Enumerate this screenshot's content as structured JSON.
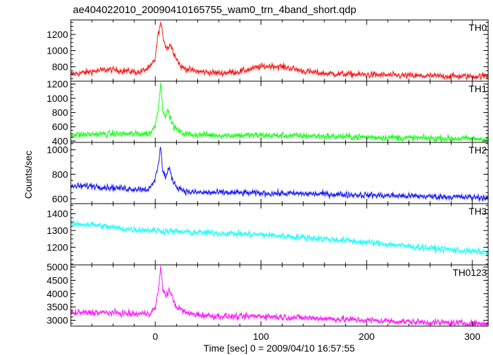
{
  "title": "ae404022010_20090410165755_wam0_trn_4band_short.qdp",
  "chart_data": {
    "type": "line",
    "title": "ae404022010_20090410165755_wam0_trn_4band_short.qdp",
    "xlabel": "Time [sec] 0 = 2009/04/10 16:57:55",
    "ylabel": "Counts/sec",
    "xlim": [
      -80,
      315
    ],
    "xticks": [
      0,
      100,
      200,
      300
    ],
    "grid": false,
    "legend": "none",
    "x_resolution_sec": 0.5,
    "panels": [
      {
        "name": "TH0",
        "color": "#ff0000",
        "ylim": [
          620,
          1380
        ],
        "yticks": [
          800,
          1000,
          1200
        ],
        "x": [
          -80,
          -60,
          -45,
          -30,
          -15,
          -5,
          0,
          2,
          5,
          8,
          11,
          14,
          18,
          24,
          30,
          40,
          60,
          80,
          100,
          110,
          125,
          140,
          160,
          200,
          250,
          300,
          312
        ],
        "y": [
          705,
          740,
          765,
          750,
          730,
          790,
          900,
          1150,
          1340,
          1130,
          1020,
          1080,
          960,
          800,
          770,
          740,
          720,
          740,
          800,
          810,
          790,
          745,
          715,
          700,
          685,
          680,
          685
        ]
      },
      {
        "name": "TH1",
        "color": "#00ff00",
        "ylim": [
          380,
          1240
        ],
        "yticks": [
          400,
          600,
          800,
          1000,
          1200
        ],
        "x": [
          -80,
          -60,
          -40,
          -20,
          -5,
          0,
          3,
          5,
          7,
          10,
          12,
          15,
          18,
          25,
          35,
          60,
          100,
          150,
          200,
          250,
          312
        ],
        "y": [
          485,
          495,
          500,
          500,
          505,
          620,
          900,
          1200,
          850,
          750,
          830,
          680,
          590,
          510,
          490,
          480,
          480,
          470,
          455,
          440,
          430
        ]
      },
      {
        "name": "TH2",
        "color": "#0000ff",
        "ylim": [
          560,
          1060
        ],
        "yticks": [
          600,
          800,
          1000
        ],
        "x": [
          -80,
          -60,
          -40,
          -20,
          -5,
          0,
          3,
          5,
          7,
          10,
          13,
          16,
          20,
          30,
          45,
          70,
          100,
          150,
          200,
          250,
          312
        ],
        "y": [
          700,
          705,
          690,
          680,
          680,
          760,
          900,
          1030,
          820,
          780,
          850,
          760,
          700,
          655,
          650,
          650,
          645,
          640,
          630,
          620,
          610
        ]
      },
      {
        "name": "TH3",
        "color": "#00ffff",
        "ylim": [
          1095,
          1460
        ],
        "yticks": [
          1200,
          1300,
          1400
        ],
        "x": [
          -80,
          -60,
          -30,
          0,
          30,
          60,
          100,
          150,
          200,
          250,
          290,
          312
        ],
        "y": [
          1340,
          1335,
          1310,
          1300,
          1290,
          1285,
          1275,
          1255,
          1230,
          1200,
          1180,
          1170
        ]
      },
      {
        "name": "TH0123",
        "color": "#ff00ff",
        "ylim": [
          2780,
          5080
        ],
        "yticks": [
          3000,
          3500,
          4000,
          4500,
          5000
        ],
        "x": [
          -80,
          -60,
          -40,
          -20,
          -5,
          0,
          3,
          5,
          7,
          10,
          13,
          16,
          20,
          30,
          50,
          80,
          100,
          120,
          150,
          200,
          250,
          312
        ],
        "y": [
          3270,
          3290,
          3280,
          3230,
          3270,
          3450,
          4200,
          4950,
          4200,
          3900,
          4150,
          3850,
          3500,
          3260,
          3170,
          3130,
          3160,
          3120,
          3080,
          3000,
          2930,
          2870
        ]
      }
    ]
  }
}
